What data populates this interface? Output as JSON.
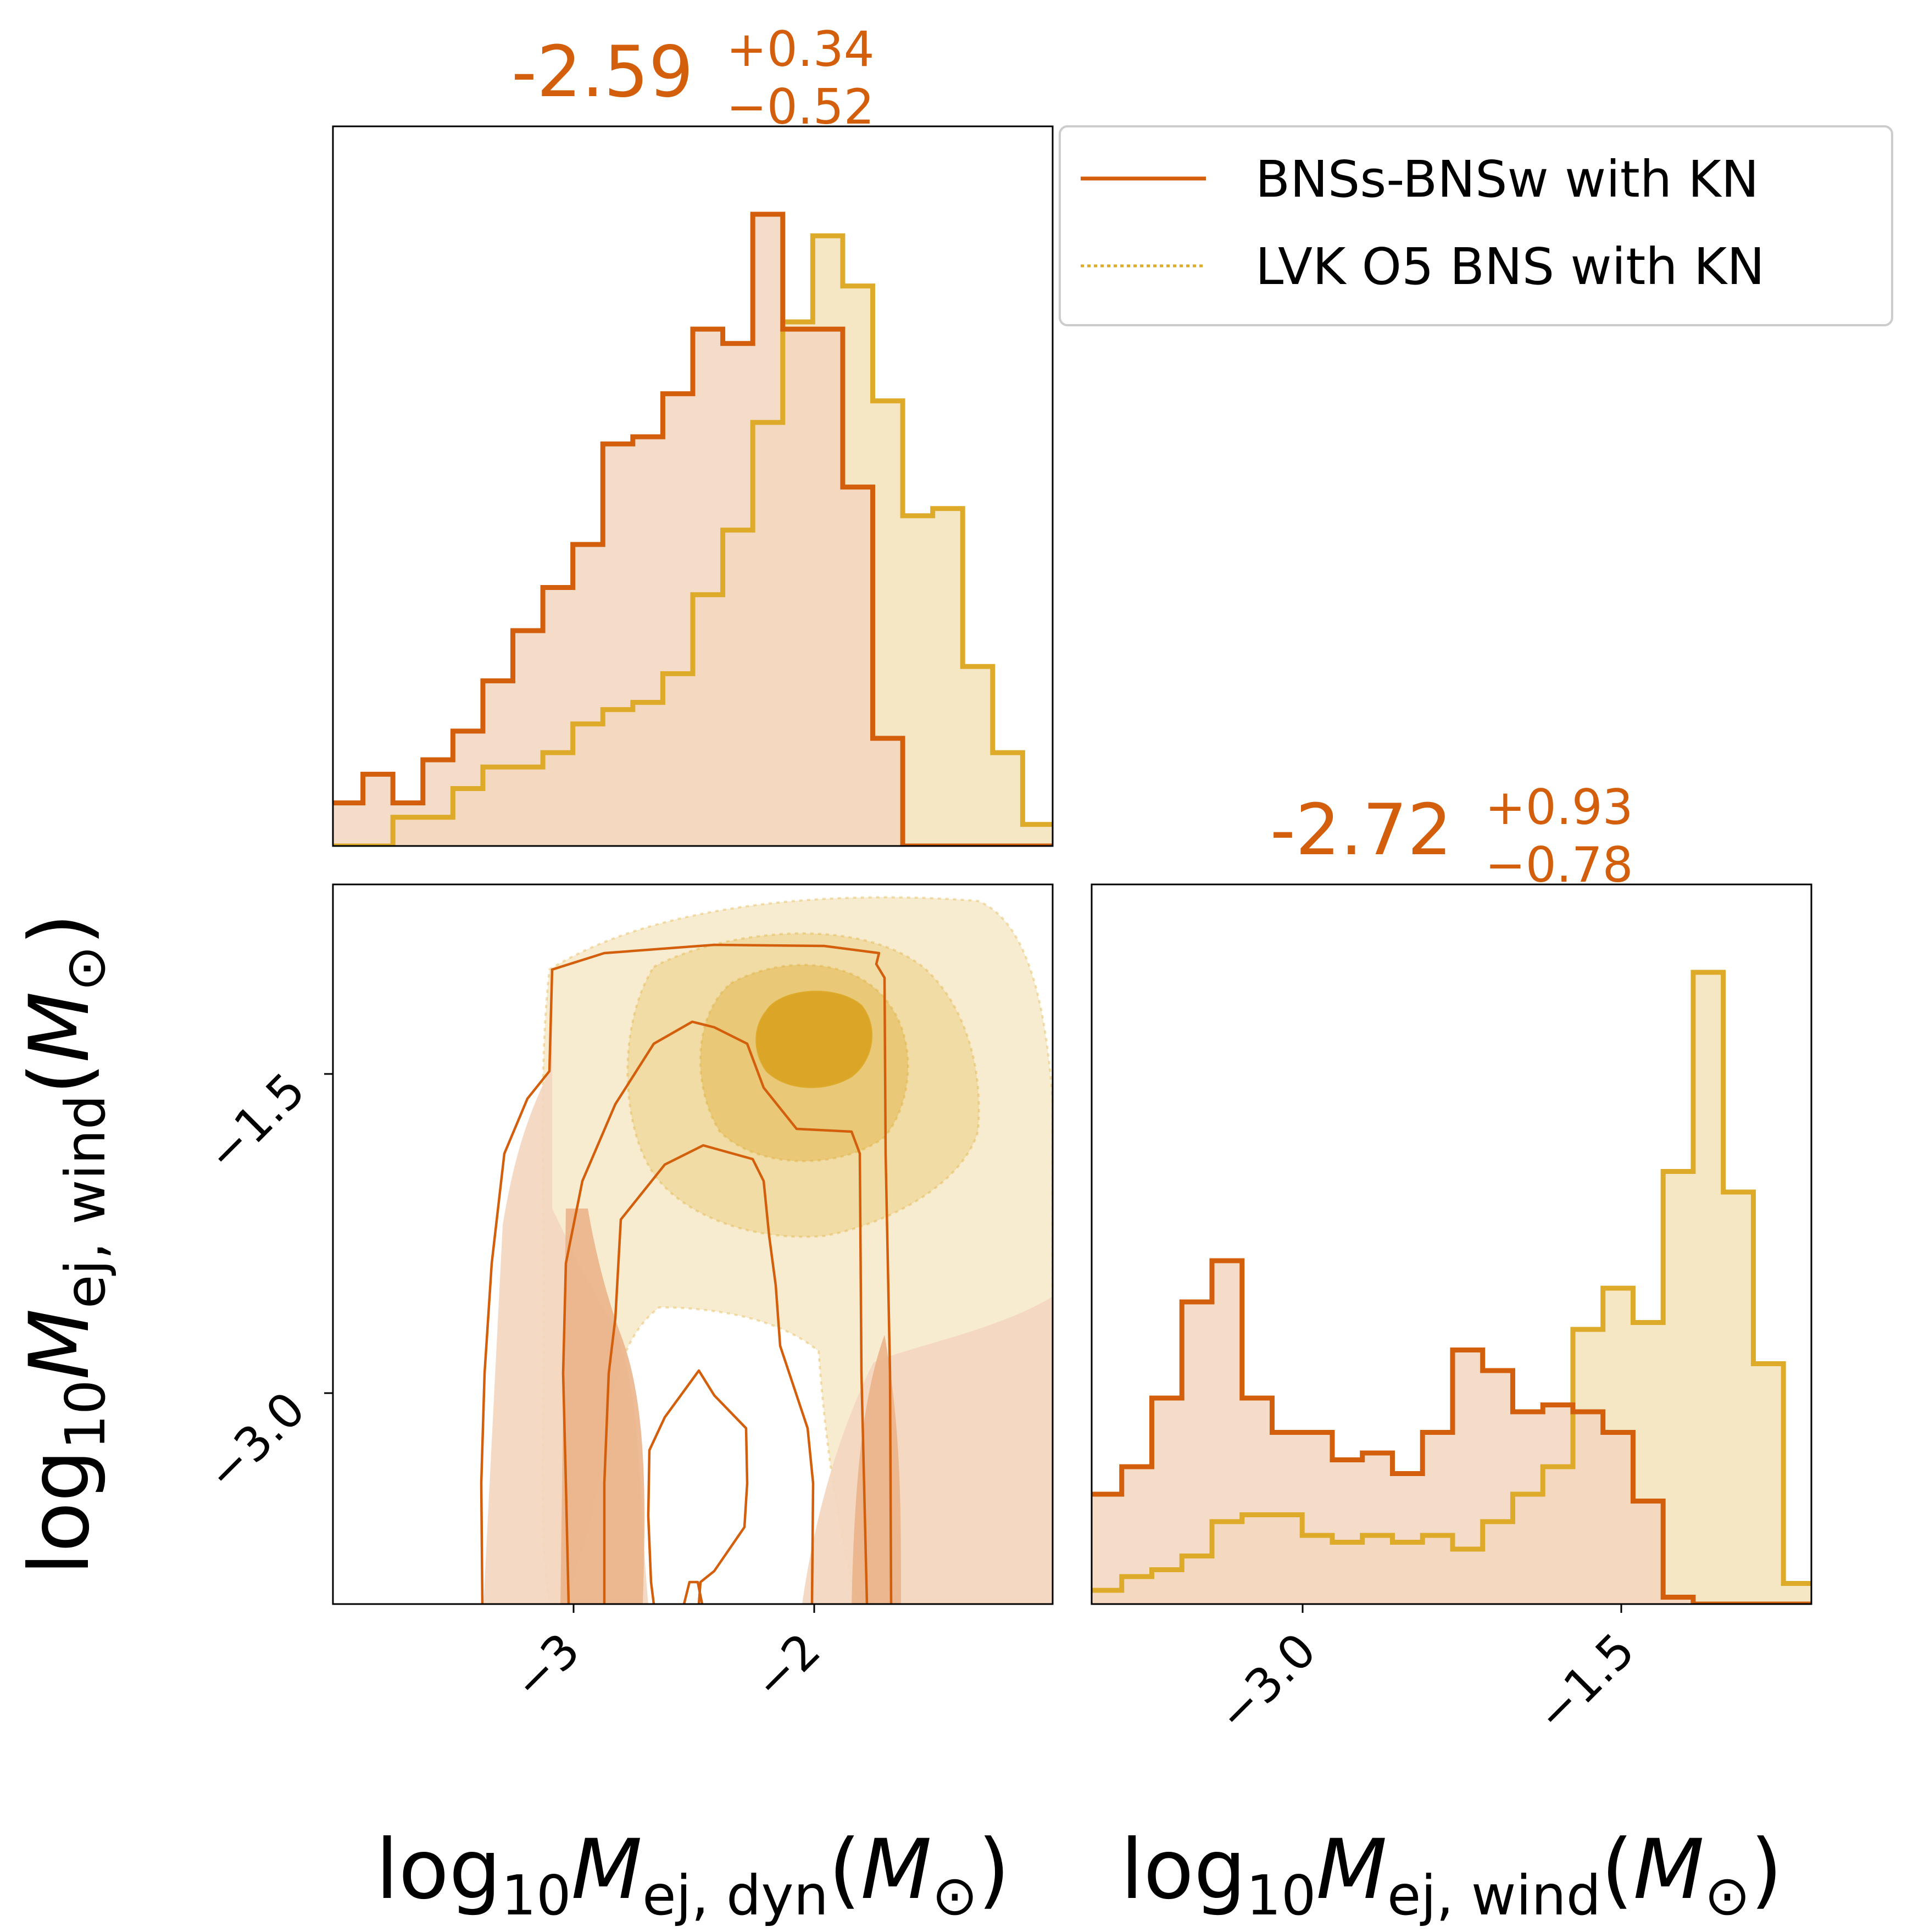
{
  "colors": {
    "bns_line": "#d35f0c",
    "bns_fill": "#f3d6bf",
    "lvk_line": "#ddaa2a",
    "lvk_fill": "#f6e7c4",
    "overlap_fill": "#edc998",
    "contour_lvk": [
      "#f8ecd0",
      "#f1dca5",
      "#e9c978",
      "#dba628"
    ],
    "contour_bns": [
      "#f3d6bf",
      "#ebb48a",
      "#e29b64"
    ]
  },
  "chart_data": [
    {
      "type": "histogram",
      "panel": "top-left",
      "parameter": "log10 M_ej,dyn",
      "xlim": [
        -4.0,
        -1.0
      ],
      "x_ticks": [
        -3,
        -2
      ],
      "summary": {
        "median": "-2.59",
        "plus": "+0.34",
        "minus": "−0.52"
      },
      "bin_edges": [
        -4.0,
        -3.875,
        -3.75,
        -3.625,
        -3.5,
        -3.375,
        -3.25,
        -3.125,
        -3.0,
        -2.875,
        -2.75,
        -2.625,
        -2.5,
        -2.375,
        -2.25,
        -2.125,
        -2.0,
        -1.875,
        -1.75,
        -1.625,
        -1.5,
        -1.375,
        -1.25,
        -1.125,
        -1.0
      ],
      "series": [
        {
          "name": "BNSs-BNSw with KN",
          "style": "solid",
          "values": [
            6,
            10,
            6,
            12,
            16,
            23,
            30,
            36,
            42,
            56,
            57,
            63,
            72,
            70,
            88,
            72,
            72,
            50,
            15,
            0,
            0,
            0,
            0,
            0
          ]
        },
        {
          "name": "LVK O5 BNS with KN",
          "style": "dotted",
          "values": [
            0,
            0,
            4,
            4,
            8,
            11,
            11,
            13,
            17,
            19,
            20,
            24,
            35,
            44,
            59,
            73,
            85,
            78,
            62,
            46,
            47,
            25,
            13,
            3
          ]
        }
      ]
    },
    {
      "type": "contour",
      "panel": "bottom-left",
      "xlabel": "log10 M_ej,dyn (M⊙)",
      "ylabel": "log10 M_ej,wind (M⊙)",
      "xlim": [
        -4.0,
        -1.0
      ],
      "ylim": [
        -3.95,
        -0.6
      ],
      "x_ticks": [
        -3,
        -2
      ],
      "y_ticks": [
        -3.0,
        -1.5
      ],
      "series": [
        {
          "name": "LVK O5 BNS with KN",
          "style": "filled-dotted",
          "peak": [
            -2.07,
            -1.36
          ]
        },
        {
          "name": "BNSs-BNSw with KN",
          "style": "filled-solid"
        }
      ]
    },
    {
      "type": "histogram",
      "panel": "bottom-right",
      "parameter": "log10 M_ej,wind",
      "xlabel": "log10 M_ej,wind (M⊙)",
      "xlim": [
        -3.95,
        -0.6
      ],
      "x_ticks": [
        -3.0,
        -1.5
      ],
      "summary": {
        "median": "-2.72",
        "plus": "+0.93",
        "minus": "−0.78"
      },
      "bin_edges": [
        -3.95,
        -3.81,
        -3.67,
        -3.53,
        -3.39,
        -3.25,
        -3.11,
        -2.97,
        -2.83,
        -2.69,
        -2.55,
        -2.41,
        -2.27,
        -2.13,
        -1.99,
        -1.85,
        -1.71,
        -1.57,
        -1.43,
        -1.29,
        -1.15,
        -1.01,
        -0.87,
        -0.73,
        -0.6
      ],
      "series": [
        {
          "name": "BNSs-BNSw with KN",
          "style": "solid",
          "values": [
            16,
            20,
            30,
            44,
            50,
            30,
            25,
            25,
            21,
            22,
            19,
            25,
            37,
            34,
            28,
            29,
            28,
            25,
            15,
            1,
            0,
            0,
            0,
            0
          ]
        },
        {
          "name": "LVK O5 BNS with KN",
          "style": "dotted",
          "values": [
            2,
            4,
            5,
            7,
            12,
            13,
            13,
            10,
            9,
            10,
            9,
            10,
            8,
            12,
            16,
            20,
            40,
            46,
            41,
            63,
            92,
            60,
            35,
            3
          ]
        }
      ]
    }
  ],
  "labels": {
    "xlabel_dyn": {
      "prefix": "log",
      "sub": "10",
      "var": "M",
      "sub2": "ej, dyn",
      "open": "(",
      "unit": "M",
      "unit_sub": "⊙",
      "close": ")"
    },
    "xlabel_wind": {
      "prefix": "log",
      "sub": "10",
      "var": "M",
      "sub2": "ej, wind",
      "open": "(",
      "unit": "M",
      "unit_sub": "⊙",
      "close": ")"
    },
    "ylabel_wind": {
      "prefix": "log",
      "sub": "10",
      "var": "M",
      "sub2": "ej, wind",
      "open": "(",
      "unit": "M",
      "unit_sub": "⊙",
      "close": ")"
    }
  },
  "ticks": {
    "dyn": [
      "−3",
      "−2"
    ],
    "wind": [
      "−3.0",
      "−1.5"
    ]
  },
  "legend": {
    "placement": "top-right",
    "entries": [
      {
        "label": "BNSs-BNSw with KN",
        "style": "solid"
      },
      {
        "label": "LVK O5 BNS with KN",
        "style": "dotted"
      }
    ]
  }
}
